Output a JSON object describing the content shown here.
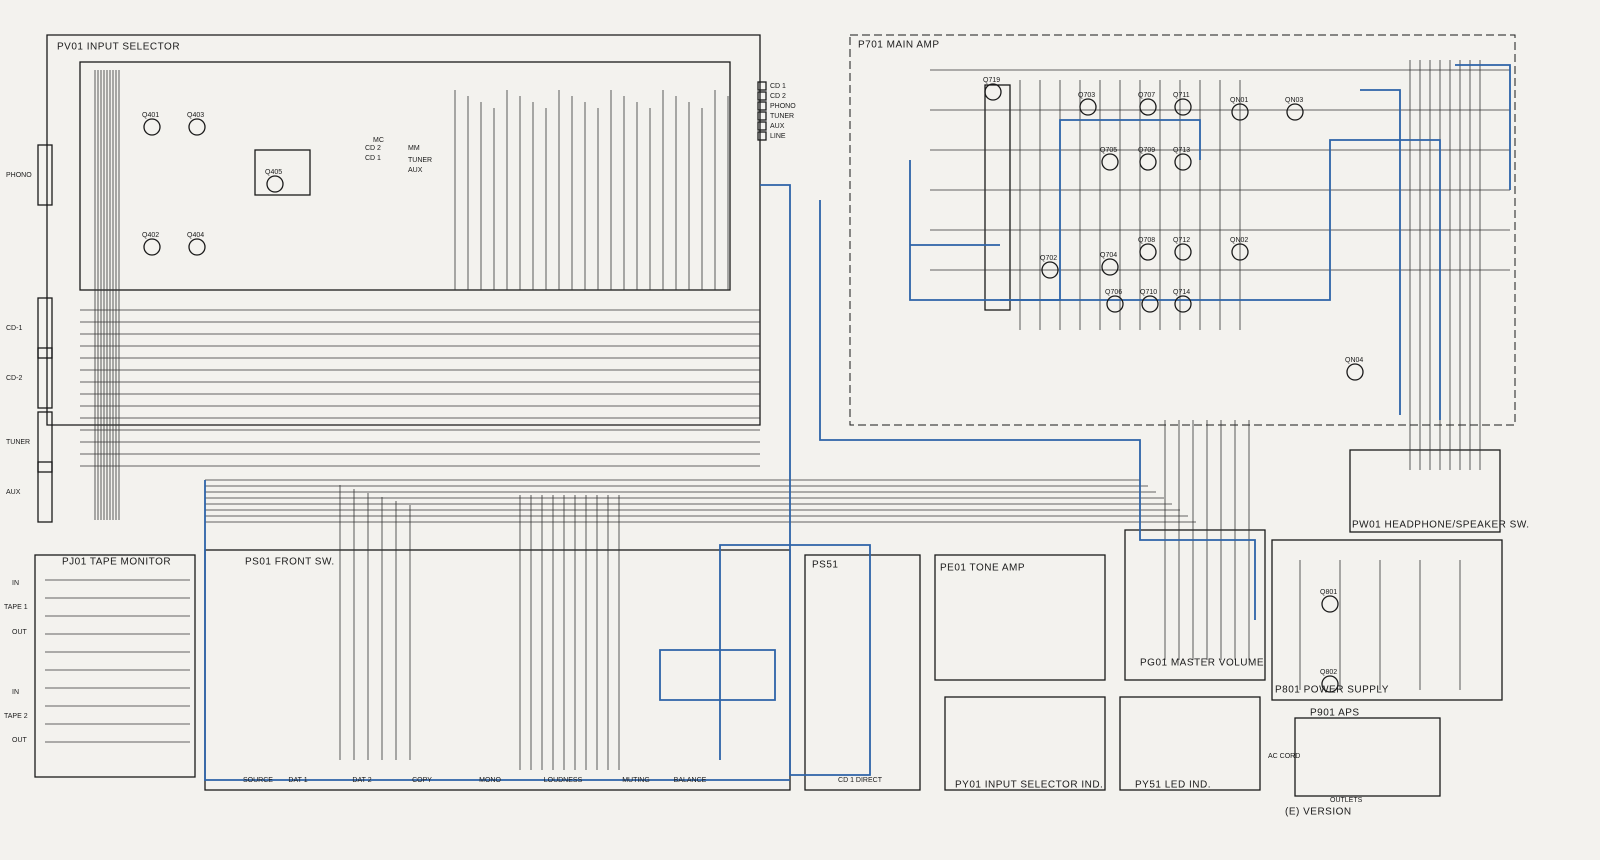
{
  "blocks": [
    {
      "title": "PV01 INPUT SELECTOR"
    },
    {
      "title": "P701 MAIN AMP"
    },
    {
      "title": "PJ01 TAPE MONITOR"
    },
    {
      "title": "PS01 FRONT SW."
    },
    {
      "title": "PS51"
    },
    {
      "title": "PE01 TONE AMP"
    },
    {
      "title": "PG01 MASTER VOLUME"
    },
    {
      "title": "P801 POWER SUPPLY"
    },
    {
      "title": "PW01 HEADPHONE/SPEAKER SW."
    },
    {
      "title": "PY01 INPUT SELECTOR IND."
    },
    {
      "title": "PY51 LED IND."
    },
    {
      "title": "P901 APS"
    }
  ],
  "input_labels": [
    "PHONO",
    "CD-1",
    "CD-2",
    "TUNER",
    "AUX"
  ],
  "tape_labels": [
    "IN",
    "TAPE 1",
    "OUT",
    "IN",
    "TAPE 2",
    "OUT"
  ],
  "switch_labels": [
    "SOURCE",
    "DAT 1",
    "DAT 2",
    "COPY",
    "MONO",
    "LOUDNESS",
    "MUTING",
    "BALANCE",
    "CD 1 DIRECT"
  ],
  "selector_labels": [
    "MC",
    "CD 2",
    "MM",
    "CD 1",
    "TUNER",
    "AUX"
  ],
  "connector_labels": [
    "CD 1",
    "CD 2",
    "PHONO",
    "TUNER",
    "AUX",
    "LINE"
  ],
  "transistors": [
    "Q401",
    "Q403",
    "Q405",
    "Q402",
    "Q404",
    "Q719",
    "Q703",
    "Q707",
    "Q711",
    "Q705",
    "Q709",
    "Q713",
    "Q702",
    "Q704",
    "Q708",
    "Q712",
    "Q706",
    "Q710",
    "Q714",
    "QN01",
    "QN02",
    "QN03",
    "QN04",
    "Q801",
    "Q802"
  ],
  "footer": {
    "version": "(E) VERSION",
    "outlets": "OUTLETS",
    "ac_cord": "AC CORD"
  }
}
